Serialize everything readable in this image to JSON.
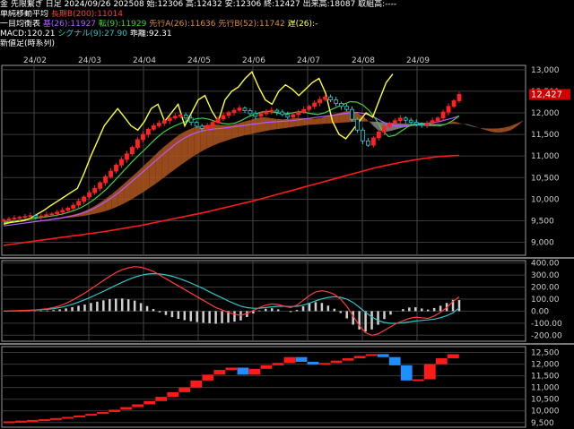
{
  "header": {
    "line1": "金 先限繋ぎ 日足 2024/09/26 202508 始:12306 高:12432 安:12306 終:12427 出来高:18087 取組高:----",
    "ma_title": "単純移動平均",
    "ma_label": "長期B(200):11014",
    "ichimoku_title": "一目均衡表",
    "ichimoku_base": "基(26):11927",
    "ichimoku_conv": "転(9):11929",
    "ichimoku_spanA": "先行A(26):11636",
    "ichimoku_spanB": "先行B(52):11742",
    "ichimoku_lag": "遅(26):-",
    "macd_label": "MACD:120.21",
    "macd_signal": "シグナル(9):27.90",
    "macd_hist": "乖離:92.31",
    "sub_title": "新値足(時系列)"
  },
  "colors": {
    "up": "#ff2222",
    "down": "#22cccc",
    "ma200": "#ff1a1a",
    "base": "#b45cff",
    "conv": "#3fd13f",
    "lag": "#ffff33",
    "cloud_bull": "#8a8a8a",
    "cloud_bear": "#b0561e",
    "macd": "#ff3b3b",
    "signal": "#2fc6c6",
    "hist": "#cfcfcf",
    "kagi_up": "#ff1a1a",
    "kagi_down": "#1e8fff"
  },
  "chart_data": [
    {
      "type": "candlestick",
      "title": "",
      "x_ticks": [
        "24/02",
        "24/03",
        "24/04",
        "24/05",
        "24/06",
        "24/07",
        "24/08",
        "24/09"
      ],
      "y_ticks": [
        "13,000",
        "12,500",
        "12,000",
        "11,500",
        "11,000",
        "10,500",
        "10,000",
        "9,500",
        "9,000"
      ],
      "ylim": [
        8700,
        13100
      ],
      "last_price_label": "12,427",
      "last_price": 12427,
      "close": [
        9520,
        9540,
        9560,
        9580,
        9600,
        9620,
        9590,
        9610,
        9640,
        9660,
        9700,
        9740,
        9790,
        9860,
        9950,
        10050,
        10150,
        10250,
        10380,
        10520,
        10650,
        10790,
        10920,
        11050,
        11200,
        11380,
        11500,
        11620,
        11700,
        11760,
        11820,
        11880,
        11920,
        11950,
        11880,
        11780,
        11690,
        11640,
        11700,
        11780,
        11860,
        11940,
        12010,
        12060,
        12110,
        12050,
        11980,
        11920,
        11980,
        12030,
        12060,
        12020,
        11960,
        11900,
        11960,
        12020,
        12080,
        12150,
        12230,
        12310,
        12370,
        12300,
        12220,
        12150,
        12080,
        11850,
        11600,
        11350,
        11250,
        11420,
        11560,
        11680,
        11760,
        11820,
        11880,
        11830,
        11780,
        11740,
        11720,
        11760,
        11820,
        11880,
        12020,
        12150,
        12280,
        12427
      ],
      "ma200": [
        8930,
        8950,
        8970,
        8990,
        9010,
        9030,
        9050,
        9070,
        9090,
        9110,
        9130,
        9150,
        9170,
        9190,
        9210,
        9230,
        9250,
        9275,
        9300,
        9325,
        9350,
        9375,
        9400,
        9430,
        9460,
        9490,
        9520,
        9550,
        9580,
        9610,
        9640,
        9670,
        9700,
        9735,
        9770,
        9805,
        9840,
        9875,
        9910,
        9945,
        9980,
        10020,
        10060,
        10100,
        10140,
        10180,
        10220,
        10260,
        10300,
        10340,
        10380,
        10420,
        10460,
        10500,
        10540,
        10580,
        10620,
        10660,
        10700,
        10735,
        10770,
        10800,
        10830,
        10860,
        10885,
        10910,
        10935,
        10955,
        10975,
        10990,
        11000,
        11008,
        11014
      ],
      "tenkan": [
        9450,
        9470,
        9500,
        9520,
        9540,
        9560,
        9580,
        9600,
        9620,
        9650,
        9690,
        9740,
        9800,
        9880,
        9980,
        10100,
        10230,
        10380,
        10540,
        10700,
        10860,
        11010,
        11150,
        11300,
        11440,
        11560,
        11650,
        11720,
        11780,
        11820,
        11860,
        11880,
        11850,
        11800,
        11760,
        11740,
        11760,
        11820,
        11900,
        11960,
        12010,
        12040,
        12020,
        11990,
        11980,
        12000,
        12030,
        12010,
        11980,
        11960,
        12000,
        12070,
        12140,
        12200,
        12260,
        12250,
        12180,
        12050,
        11850,
        11600,
        11450,
        11480,
        11580,
        11680,
        11740,
        11760,
        11750,
        11720,
        11700,
        11740,
        11820,
        11929
      ],
      "kijun": [
        9380,
        9400,
        9420,
        9440,
        9460,
        9480,
        9500,
        9520,
        9540,
        9560,
        9590,
        9620,
        9660,
        9710,
        9780,
        9860,
        9950,
        10050,
        10160,
        10280,
        10410,
        10540,
        10670,
        10800,
        10930,
        11060,
        11180,
        11300,
        11400,
        11480,
        11540,
        11580,
        11610,
        11630,
        11640,
        11660,
        11680,
        11700,
        11720,
        11740,
        11760,
        11780,
        11790,
        11800,
        11810,
        11820,
        11840,
        11860,
        11880,
        11900,
        11920,
        11940,
        11960,
        11980,
        12000,
        12010,
        11990,
        11950,
        11880,
        11800,
        11730,
        11700,
        11690,
        11700,
        11720,
        11740,
        11760,
        11780,
        11800,
        11840,
        11880,
        11927
      ],
      "span_a": [
        9450,
        9460,
        9480,
        9500,
        9510,
        9520,
        9530,
        9540,
        9560,
        9580,
        9610,
        9640,
        9680,
        9740,
        9810,
        9900,
        10000,
        10110,
        10230,
        10360,
        10490,
        10620,
        10760,
        10900,
        11040,
        11180,
        11300,
        11420,
        11520,
        11600,
        11660,
        11700,
        11720,
        11730,
        11720,
        11710,
        11720,
        11760,
        11800,
        11840,
        11880,
        11900,
        11880,
        11860,
        11850,
        11860,
        11880,
        11880,
        11870,
        11860,
        11880,
        11920,
        11960,
        12000,
        12040,
        12040,
        11980,
        11880,
        11740,
        11600,
        11560,
        11580,
        11620,
        11660,
        11690,
        11700,
        11700,
        11690,
        11690,
        11720,
        11760,
        11800,
        11760,
        11720,
        11680,
        11650,
        11640,
        11636,
        11640,
        11660,
        11700,
        11760,
        11830
      ],
      "span_b": [
        9500,
        9500,
        9510,
        9510,
        9520,
        9520,
        9530,
        9540,
        9550,
        9560,
        9570,
        9580,
        9600,
        9620,
        9650,
        9680,
        9720,
        9770,
        9830,
        9900,
        9980,
        10070,
        10160,
        10260,
        10360,
        10470,
        10580,
        10690,
        10800,
        10900,
        11000,
        11090,
        11170,
        11240,
        11300,
        11350,
        11400,
        11440,
        11480,
        11510,
        11540,
        11570,
        11600,
        11620,
        11640,
        11660,
        11680,
        11700,
        11720,
        11730,
        11740,
        11750,
        11760,
        11770,
        11780,
        11790,
        11800,
        11800,
        11800,
        11790,
        11780,
        11770,
        11760,
        11750,
        11745,
        11742,
        11742,
        11742,
        11742,
        11742,
        11742,
        11742,
        11742,
        11742,
        11700,
        11650,
        11600,
        11560,
        11540,
        11560,
        11600,
        11700,
        11830
      ],
      "chikou": [
        9420,
        9460,
        9480,
        9500,
        9560,
        9650,
        9740,
        9850,
        9950,
        10050,
        10150,
        10250,
        10600,
        11000,
        11350,
        11700,
        11900,
        12100,
        11900,
        11700,
        11600,
        11800,
        12100,
        12200,
        11800,
        12000,
        12200,
        11700,
        12000,
        12300,
        12400,
        12050,
        11800,
        12300,
        12500,
        12600,
        12800,
        12950,
        12600,
        12300,
        12200,
        12500,
        12650,
        12550,
        12400,
        12550,
        12700,
        12800,
        12450,
        11800,
        11500,
        11400,
        11600,
        11800,
        12000,
        11900,
        12300,
        12700,
        12900
      ]
    },
    {
      "type": "macd",
      "title": "",
      "y_ticks": [
        "400.00",
        "300.00",
        "200.00",
        "100.00",
        "0.00",
        "-100.00",
        "-200.00"
      ],
      "ylim": [
        -250,
        420
      ],
      "macd": [
        0,
        2,
        4,
        6,
        8,
        10,
        15,
        20,
        30,
        45,
        65,
        90,
        120,
        150,
        185,
        220,
        255,
        290,
        320,
        345,
        360,
        370,
        365,
        350,
        330,
        300,
        270,
        240,
        210,
        180,
        150,
        120,
        90,
        60,
        30,
        10,
        -10,
        -25,
        -35,
        -20,
        5,
        30,
        50,
        60,
        55,
        40,
        30,
        50,
        90,
        130,
        160,
        170,
        160,
        140,
        100,
        40,
        -40,
        -120,
        -180,
        -200,
        -190,
        -160,
        -130,
        -100,
        -80,
        -60,
        -50,
        -55,
        -60,
        -40,
        -10,
        30,
        80,
        120
      ],
      "signal": [
        0,
        1,
        2,
        4,
        6,
        8,
        11,
        15,
        21,
        30,
        42,
        57,
        75,
        95,
        117,
        141,
        165,
        190,
        216,
        240,
        262,
        282,
        298,
        308,
        312,
        310,
        302,
        290,
        274,
        255,
        234,
        211,
        187,
        161,
        135,
        110,
        85,
        62,
        42,
        29,
        24,
        25,
        30,
        36,
        40,
        40,
        38,
        40,
        50,
        66,
        85,
        102,
        114,
        120,
        115,
        100,
        72,
        32,
        -10,
        -48,
        -77,
        -94,
        -101,
        -101,
        -97,
        -90,
        -82,
        -77,
        -73,
        -66,
        -55,
        -38,
        -14,
        28
      ],
      "histogram": [
        0,
        1,
        2,
        2,
        2,
        2,
        4,
        5,
        9,
        15,
        23,
        33,
        45,
        55,
        68,
        79,
        90,
        100,
        104,
        105,
        98,
        88,
        67,
        42,
        18,
        -10,
        -32,
        -50,
        -64,
        -75,
        -84,
        -91,
        -97,
        -101,
        -105,
        -100,
        -95,
        -87,
        -77,
        -49,
        -19,
        5,
        20,
        24,
        15,
        0,
        -8,
        10,
        40,
        64,
        75,
        68,
        46,
        20,
        -15,
        -60,
        -112,
        -152,
        -170,
        -152,
        -113,
        -66,
        -29,
        1,
        17,
        30,
        32,
        22,
        13,
        26,
        45,
        68,
        94,
        92
      ]
    },
    {
      "type": "kagi",
      "title": "",
      "y_ticks": [
        "12,500",
        "12,000",
        "11,500",
        "11,000",
        "10,500",
        "10,000",
        "9,500"
      ],
      "ylim": [
        9300,
        12750
      ],
      "bricks": [
        {
          "from": 9500,
          "to": 9550,
          "dir": "up"
        },
        {
          "from": 9550,
          "to": 9580,
          "dir": "up"
        },
        {
          "from": 9580,
          "to": 9610,
          "dir": "up"
        },
        {
          "from": 9610,
          "to": 9640,
          "dir": "up"
        },
        {
          "from": 9640,
          "to": 9690,
          "dir": "up"
        },
        {
          "from": 9690,
          "to": 9740,
          "dir": "up"
        },
        {
          "from": 9740,
          "to": 9800,
          "dir": "up"
        },
        {
          "from": 9800,
          "to": 9870,
          "dir": "up"
        },
        {
          "from": 9870,
          "to": 9950,
          "dir": "up"
        },
        {
          "from": 9950,
          "to": 10050,
          "dir": "up"
        },
        {
          "from": 10050,
          "to": 10160,
          "dir": "up"
        },
        {
          "from": 10160,
          "to": 10280,
          "dir": "up"
        },
        {
          "from": 10280,
          "to": 10420,
          "dir": "up"
        },
        {
          "from": 10420,
          "to": 10600,
          "dir": "up"
        },
        {
          "from": 10600,
          "to": 10800,
          "dir": "up"
        },
        {
          "from": 10800,
          "to": 11000,
          "dir": "up"
        },
        {
          "from": 11000,
          "to": 11300,
          "dir": "up"
        },
        {
          "from": 11300,
          "to": 11550,
          "dir": "up"
        },
        {
          "from": 11550,
          "to": 11750,
          "dir": "up"
        },
        {
          "from": 11750,
          "to": 11850,
          "dir": "up"
        },
        {
          "from": 11850,
          "to": 11550,
          "dir": "down"
        },
        {
          "from": 11550,
          "to": 11800,
          "dir": "up"
        },
        {
          "from": 11800,
          "to": 11950,
          "dir": "up"
        },
        {
          "from": 11950,
          "to": 12050,
          "dir": "up"
        },
        {
          "from": 12050,
          "to": 12300,
          "dir": "up"
        },
        {
          "from": 12300,
          "to": 12100,
          "dir": "down"
        },
        {
          "from": 12100,
          "to": 11980,
          "dir": "down"
        },
        {
          "from": 11980,
          "to": 12050,
          "dir": "up"
        },
        {
          "from": 12050,
          "to": 12150,
          "dir": "up"
        },
        {
          "from": 12150,
          "to": 12250,
          "dir": "up"
        },
        {
          "from": 12250,
          "to": 12350,
          "dir": "up"
        },
        {
          "from": 12350,
          "to": 12430,
          "dir": "up"
        },
        {
          "from": 12430,
          "to": 12300,
          "dir": "down"
        },
        {
          "from": 12300,
          "to": 11950,
          "dir": "down"
        },
        {
          "from": 11950,
          "to": 11300,
          "dir": "down"
        },
        {
          "from": 11300,
          "to": 11350,
          "dir": "up"
        },
        {
          "from": 11350,
          "to": 12000,
          "dir": "up"
        },
        {
          "from": 12000,
          "to": 12250,
          "dir": "up"
        },
        {
          "from": 12250,
          "to": 12427,
          "dir": "up"
        }
      ]
    }
  ]
}
